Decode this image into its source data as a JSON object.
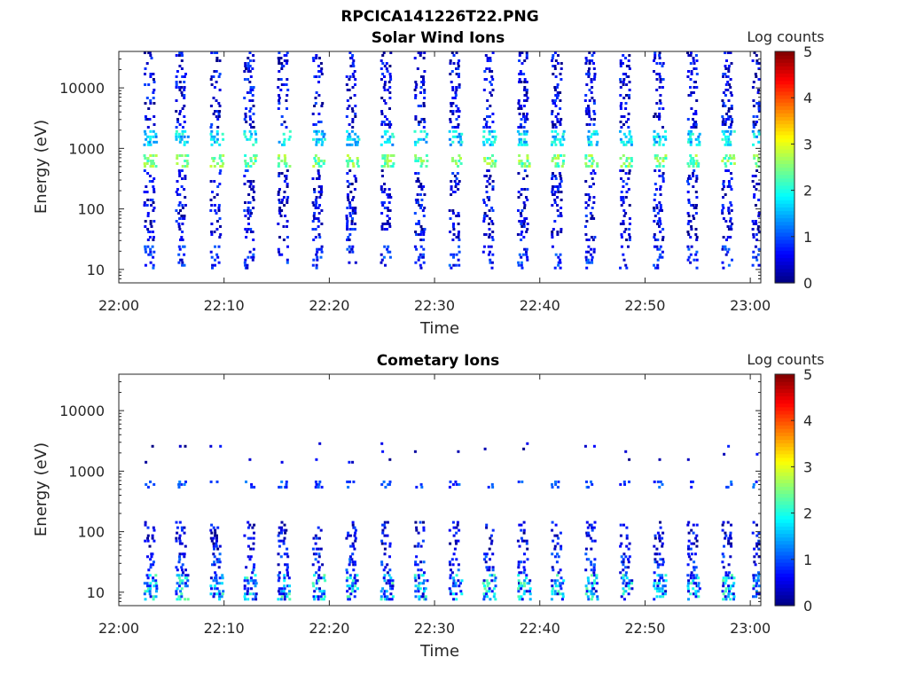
{
  "figure": {
    "title": "RPCICA141226T22.PNG"
  },
  "chart_data": [
    {
      "type": "heatmap",
      "title": "Solar Wind Ions",
      "xlabel": "Time",
      "ylabel": "Energy (eV)",
      "x_range": [
        "22:00",
        "23:01"
      ],
      "x_ticks": [
        "22:00",
        "22:10",
        "22:20",
        "22:30",
        "22:40",
        "22:50",
        "23:00"
      ],
      "y_scale": "log",
      "y_range": [
        6,
        40000
      ],
      "y_ticks": [
        "10",
        "100",
        "1000",
        "10000"
      ],
      "colorbar": {
        "label": "Log counts",
        "range": [
          0,
          5
        ],
        "ticks": [
          "0",
          "1",
          "2",
          "3",
          "4",
          "5"
        ],
        "colormap": "jet"
      },
      "sweep_times_min": [
        3,
        6,
        9.3,
        12.5,
        15.7,
        19,
        22.2,
        25.5,
        28.7,
        32,
        35.2,
        38.5,
        41.7,
        44.9,
        48.2,
        51.4,
        54.6,
        57.9,
        60.8
      ],
      "bands": [
        {
          "energy_eV": [
            10,
            25
          ],
          "level_log_counts": [
            0.3,
            1.2
          ],
          "pattern": "vertical streaks after each sweep"
        },
        {
          "energy_eV": [
            480,
            800
          ],
          "level_log_counts": [
            2.0,
            2.9
          ],
          "pattern": "main solar wind peak near 600 eV"
        },
        {
          "energy_eV": [
            1100,
            2000
          ],
          "level_log_counts": [
            1.2,
            2.2
          ],
          "pattern": "alpha particles near 1400 eV"
        },
        {
          "energy_eV": [
            2200,
            40000
          ],
          "level_log_counts": [
            0,
            1
          ],
          "pattern": "sparse background"
        },
        {
          "energy_eV": [
            30,
            450
          ],
          "level_log_counts": [
            0,
            1
          ],
          "pattern": "sparse background"
        }
      ]
    },
    {
      "type": "heatmap",
      "title": "Cometary Ions",
      "xlabel": "Time",
      "ylabel": "Energy (eV)",
      "x_range": [
        "22:00",
        "23:01"
      ],
      "x_ticks": [
        "22:00",
        "22:10",
        "22:20",
        "22:30",
        "22:40",
        "22:50",
        "23:00"
      ],
      "y_scale": "log",
      "y_range": [
        6,
        40000
      ],
      "y_ticks": [
        "10",
        "100",
        "1000",
        "10000"
      ],
      "colorbar": {
        "label": "Log counts",
        "range": [
          0,
          5
        ],
        "ticks": [
          "0",
          "1",
          "2",
          "3",
          "4",
          "5"
        ],
        "colormap": "jet"
      },
      "sweep_times_min": [
        3,
        6,
        9.3,
        12.5,
        15.7,
        19,
        22.2,
        25.5,
        28.7,
        32,
        35.2,
        38.5,
        41.7,
        44.9,
        48.2,
        51.4,
        54.6,
        57.9,
        60.8
      ],
      "bands": [
        {
          "energy_eV": [
            7,
            20
          ],
          "level_log_counts": [
            0.3,
            2.4
          ],
          "pattern": "bright cometary ions at low energy"
        },
        {
          "energy_eV": [
            20,
            45
          ],
          "level_log_counts": [
            0.2,
            1.2
          ],
          "pattern": "streaks"
        },
        {
          "energy_eV": [
            50,
            150
          ],
          "level_log_counts": [
            0,
            1
          ],
          "pattern": "sparse"
        },
        {
          "energy_eV": [
            520,
            700
          ],
          "level_log_counts": [
            0.6,
            1.3
          ],
          "pattern": "faint band near 600 eV"
        },
        {
          "energy_eV": [
            1400,
            3000
          ],
          "level_log_counts": [
            0,
            0.8
          ],
          "pattern": "sparse dots"
        }
      ]
    }
  ]
}
